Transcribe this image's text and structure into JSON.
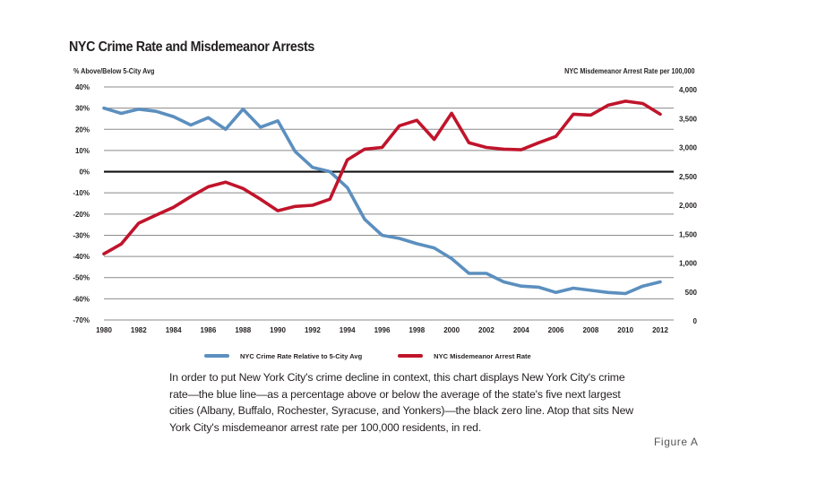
{
  "figure_label": "Figure A",
  "caption": "In order to put New York City's crime decline in context, this chart displays New York City's crime rate—the blue line—as a percentage above or below the average of the state's five next largest cities (Albany, Buffalo, Rochester, Syracuse, and Yonkers)—the black zero line. Atop that sits New York City's misdemeanor arrest rate per 100,000 residents, in red.",
  "chart_data": {
    "type": "line",
    "title": "NYC Crime Rate and Misdemeanor Arrests",
    "ylabel": "% Above/Below 5-City Avg",
    "y2label": "NYC Misdemeanor Arrest Rate per 100,000",
    "xlabel": "",
    "ylim": [
      -70,
      40
    ],
    "y2lim": [
      0,
      4000
    ],
    "xlim": [
      1980,
      2012
    ],
    "grid": true,
    "legend_position": "bottom",
    "x": [
      1980,
      1981,
      1982,
      1983,
      1984,
      1985,
      1986,
      1987,
      1988,
      1989,
      1990,
      1991,
      1992,
      1993,
      1994,
      1995,
      1996,
      1997,
      1998,
      1999,
      2000,
      2001,
      2002,
      2003,
      2004,
      2005,
      2006,
      2007,
      2008,
      2009,
      2010,
      2011,
      2012
    ],
    "x_tick_labels": [
      "1980",
      "1982",
      "1984",
      "1986",
      "1988",
      "1990",
      "1992",
      "1994",
      "1996",
      "1998",
      "2000",
      "2002",
      "2004",
      "2006",
      "2008",
      "2010",
      "2012"
    ],
    "y_tick_labels": [
      "40%",
      "30%",
      "20%",
      "10%",
      "0%",
      "-10%",
      "-20%",
      "-30%",
      "-40%",
      "-50%",
      "-60%",
      "-70%"
    ],
    "y_ticks": [
      40,
      30,
      20,
      10,
      0,
      -10,
      -20,
      -30,
      -40,
      -50,
      -60,
      -70
    ],
    "y2_tick_labels": [
      "4,000",
      "3,500",
      "3,000",
      "2,500",
      "2,000",
      "1,500",
      "1,000",
      "500",
      "0"
    ],
    "y2_ticks": [
      4000,
      3500,
      3000,
      2500,
      2000,
      1500,
      1000,
      500,
      0
    ],
    "zero_line": 0,
    "series": [
      {
        "name": "NYC Crime Rate Relative to 5-City Avg",
        "axis": "left",
        "color": "#5b8fbf",
        "values": [
          30,
          27.5,
          29.5,
          28.5,
          26,
          22,
          25.5,
          20,
          29.5,
          21,
          24,
          9.5,
          2,
          0,
          -7.5,
          -22.5,
          -30,
          -31.5,
          -34,
          -36,
          -41,
          -48,
          -48,
          -52,
          -54,
          -54.5,
          -57,
          -55,
          -56,
          -57,
          -57.5,
          -54,
          -52
        ]
      },
      {
        "name": "NYC Misdemeanor Arrest Rate",
        "axis": "right",
        "color": "#c0142b",
        "values": [
          1160,
          1330,
          1690,
          1830,
          1965,
          2150,
          2320,
          2400,
          2290,
          2105,
          1905,
          1980,
          2000,
          2105,
          2785,
          2970,
          3000,
          3375,
          3470,
          3140,
          3590,
          3080,
          3000,
          2970,
          2960,
          3080,
          3190,
          3575,
          3560,
          3730,
          3800,
          3760,
          3575
        ]
      }
    ]
  }
}
